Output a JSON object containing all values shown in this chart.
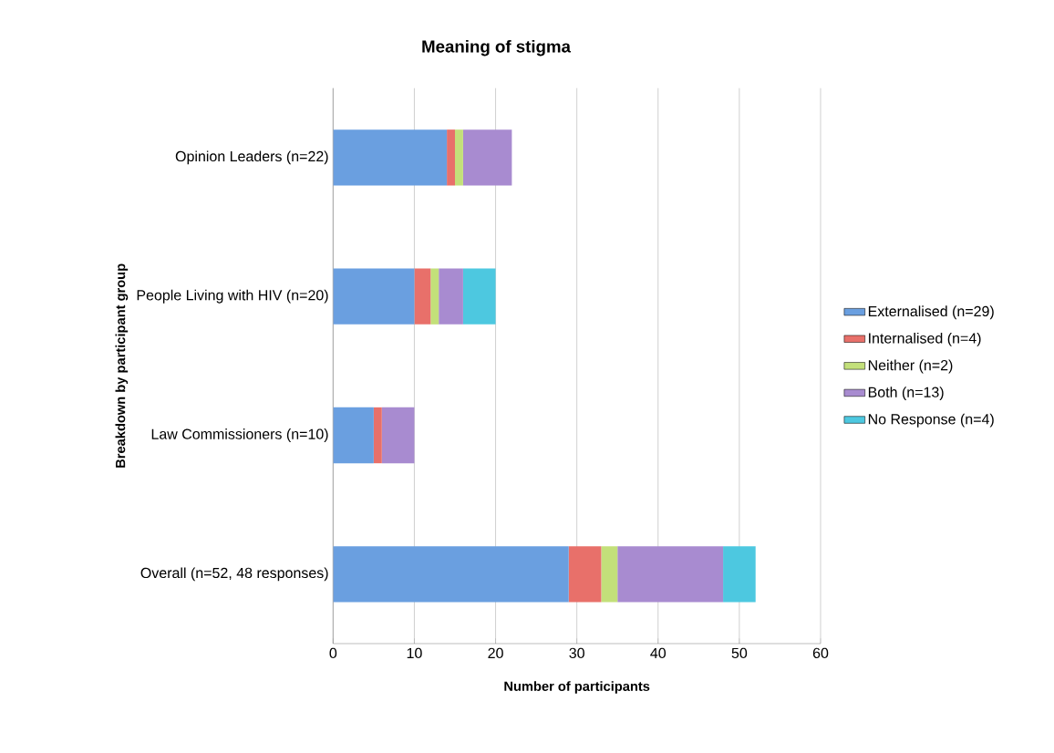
{
  "chart_data": {
    "type": "bar",
    "orientation": "horizontal",
    "stacked": true,
    "title": "Meaning of stigma",
    "xlabel": "Number of participants",
    "ylabel": "Breakdown by participant group",
    "categories": [
      "Opinion Leaders (n=22)",
      "People Living with HIV (n=20)",
      "Law Commissioners (n=10)",
      "Overall (n=52, 48 responses)"
    ],
    "series": [
      {
        "name": "Externalised (n=29)",
        "color": "#6a9fe0",
        "values": [
          14,
          10,
          5,
          29
        ]
      },
      {
        "name": "Internalised (n=4)",
        "color": "#e8706a",
        "values": [
          1,
          2,
          1,
          4
        ]
      },
      {
        "name": "Neither (n=2)",
        "color": "#c3e07a",
        "values": [
          1,
          1,
          0,
          2
        ]
      },
      {
        "name": "Both (n=13)",
        "color": "#a88bd0",
        "values": [
          6,
          3,
          4,
          13
        ]
      },
      {
        "name": "No Response (n=4)",
        "color": "#4dc8e0",
        "values": [
          0,
          4,
          0,
          4
        ]
      }
    ],
    "xlim": [
      0,
      60
    ],
    "xticks": [
      0,
      10,
      20,
      30,
      40,
      50,
      60
    ],
    "grid": "x",
    "legend": "right"
  }
}
